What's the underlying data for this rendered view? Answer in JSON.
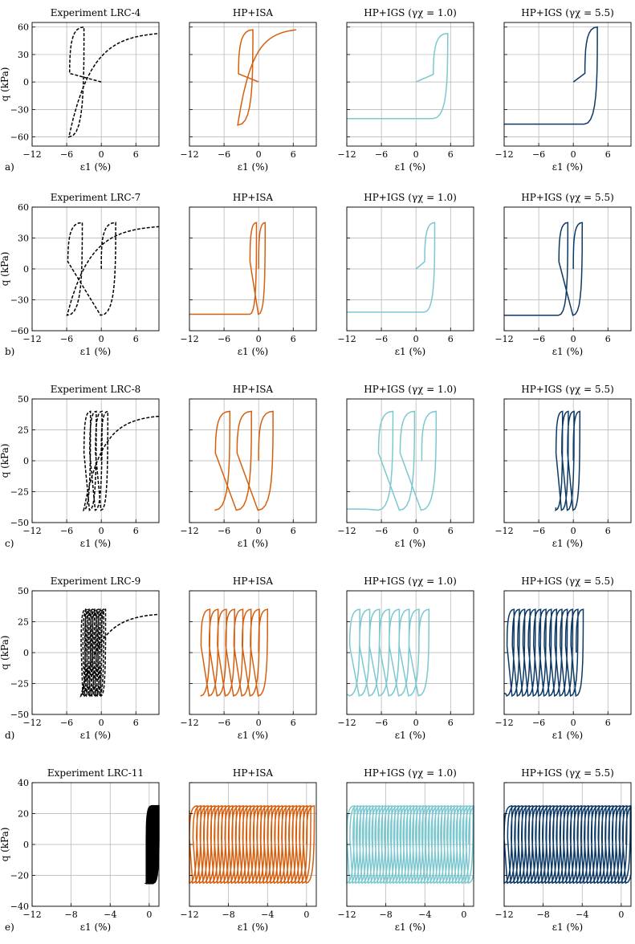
{
  "colors": {
    "experiment": "#000000",
    "hp_isa": "#d65f0e",
    "hp_igs_1": "#7cc8d0",
    "hp_igs_5": "#0c3966"
  },
  "chart_data": [
    {
      "row_label": "a)",
      "type": "line",
      "ylabel": "q (kPa)",
      "xlabel": "ε1 (%)",
      "xlim": [
        -12,
        10
      ],
      "ylim": [
        -70,
        65
      ],
      "xticks": [
        -12,
        -6,
        0,
        6
      ],
      "yticks": [
        -60,
        -30,
        0,
        30,
        60
      ],
      "panels": [
        {
          "title": "Experiment LRC-4",
          "series": "experiment",
          "q_amp": 60,
          "q_max": 60,
          "q_min": -60,
          "cycles": 1,
          "strain_start": 0,
          "strain_end": -5.5,
          "extra_cycles": [
            {
              "x_peak": 2,
              "x_trough": -5.3
            }
          ],
          "final_strain": 10,
          "final_q": 53
        },
        {
          "title": "HP+ISA",
          "series": "hp_isa",
          "q_max": 57,
          "q_min": -47,
          "cycles": 1,
          "strain_start": 0,
          "strain_end": -3.5,
          "final_strain": 6.5,
          "final_q": 57
        },
        {
          "title": "HP+IGS (γχ = 1.0)",
          "series": "hp_igs_1",
          "q_max": 53,
          "q_min": -40,
          "cycles": 1,
          "strain_start": 0,
          "strain_end": 3,
          "final_strain": -12,
          "final_q": -40
        },
        {
          "title": "HP+IGS (γχ = 5.5)",
          "series": "hp_igs_5",
          "q_max": 60,
          "q_min": -46,
          "cycles": 1,
          "strain_start": 0,
          "strain_end": 2,
          "final_strain": -12,
          "final_q": -46
        }
      ]
    },
    {
      "row_label": "b)",
      "type": "line",
      "ylabel": "q (kPa)",
      "xlabel": "ε1 (%)",
      "xlim": [
        -12,
        10
      ],
      "ylim": [
        -60,
        60
      ],
      "xticks": [
        -12,
        -6,
        0,
        6
      ],
      "yticks": [
        -60,
        -30,
        0,
        30,
        60
      ],
      "panels": [
        {
          "title": "Experiment LRC-7",
          "series": "experiment",
          "q_max": 45,
          "q_min": -45,
          "cycles": 2,
          "strain_start": 0,
          "strain_end": -5.8,
          "final_strain": 10,
          "final_q": 41
        },
        {
          "title": "HP+ISA",
          "series": "hp_isa",
          "q_max": 45,
          "q_min": -44,
          "cycles": 2,
          "strain_start": 0,
          "strain_end": -1.5,
          "final_strain": -12,
          "final_q": -44
        },
        {
          "title": "HP+IGS (γχ = 1.0)",
          "series": "hp_igs_1",
          "q_max": 45,
          "q_min": -42,
          "cycles": 1,
          "strain_start": 0,
          "strain_end": 1.5,
          "final_strain": -12,
          "final_q": -42
        },
        {
          "title": "HP+IGS (γχ = 5.5)",
          "series": "hp_igs_5",
          "q_max": 45,
          "q_min": -45,
          "cycles": 2,
          "strain_start": 0,
          "strain_end": -2.5,
          "final_strain": -12,
          "final_q": -45
        }
      ]
    },
    {
      "row_label": "c)",
      "type": "line",
      "ylabel": "q (kPa)",
      "xlabel": "ε1 (%)",
      "xlim": [
        -12,
        10
      ],
      "ylim": [
        -50,
        50
      ],
      "xticks": [
        -12,
        -6,
        0,
        6
      ],
      "yticks": [
        -50,
        -25,
        0,
        25,
        50
      ],
      "panels": [
        {
          "title": "Experiment LRC-8",
          "series": "experiment",
          "q_max": 40,
          "q_min": -40,
          "cycles": 4,
          "strain_start": 0,
          "strain_end": -3,
          "final_strain": 10,
          "final_q": 36
        },
        {
          "title": "HP+ISA",
          "series": "hp_isa",
          "q_max": 40,
          "q_min": -40,
          "cycles": 3,
          "strain_start": 0,
          "strain_end": -7.5,
          "final_strain": -7.5,
          "final_q": -40
        },
        {
          "title": "HP+IGS (γχ = 1.0)",
          "series": "hp_igs_1",
          "q_max": 40,
          "q_min": -40,
          "cycles": 3,
          "strain_start": 1,
          "strain_end": -6.5,
          "final_strain": -12,
          "final_q": -39
        },
        {
          "title": "HP+IGS (γχ = 5.5)",
          "series": "hp_igs_5",
          "q_max": 40,
          "q_min": -40,
          "cycles": 4,
          "strain_start": 0,
          "strain_end": -3,
          "final_strain": -3,
          "final_q": -38
        }
      ]
    },
    {
      "row_label": "d)",
      "type": "line",
      "ylabel": "q (kPa)",
      "xlabel": "ε1 (%)",
      "xlim": [
        -12,
        10
      ],
      "ylim": [
        -50,
        50
      ],
      "xticks": [
        -12,
        -6,
        0,
        6
      ],
      "yticks": [
        -50,
        -25,
        0,
        25,
        50
      ],
      "panels": [
        {
          "title": "Experiment LRC-9",
          "series": "experiment",
          "q_max": 35,
          "q_min": -35,
          "cycles": 12,
          "strain_start": 0,
          "strain_end": -3.5,
          "final_strain": 10,
          "final_q": 31
        },
        {
          "title": "HP+ISA",
          "series": "hp_isa",
          "q_max": 35,
          "q_min": -35,
          "cycles": 8,
          "strain_start": 0,
          "strain_end": -10,
          "final_strain": -10,
          "final_q": -35
        },
        {
          "title": "HP+IGS (γχ = 1.0)",
          "series": "hp_igs_1",
          "q_max": 35,
          "q_min": -35,
          "cycles": 8,
          "strain_start": 0.5,
          "strain_end": -11.5,
          "final_strain": -12,
          "final_q": -34
        },
        {
          "title": "HP+IGS (γχ = 5.5)",
          "series": "hp_igs_5",
          "q_max": 35,
          "q_min": -35,
          "cycles": 14,
          "strain_start": 0.5,
          "strain_end": -11.5,
          "final_strain": -12,
          "final_q": -33
        }
      ]
    },
    {
      "row_label": "e)",
      "type": "line",
      "ylabel": "q (kPa)",
      "xlabel": "ε1 (%)",
      "xlim": [
        -12,
        1
      ],
      "ylim": [
        -40,
        40
      ],
      "xticks": [
        -12,
        -8,
        -4,
        0
      ],
      "yticks": [
        -40,
        -20,
        0,
        20,
        40
      ],
      "panels": [
        {
          "title": "Experiment LRC-11",
          "series": "experiment",
          "q_max": 25,
          "q_min": -25,
          "cycles": 30,
          "strain_start": 0.5,
          "strain_end": -0.3,
          "final_strain": -0.3,
          "final_q": -25
        },
        {
          "title": "HP+ISA",
          "series": "hp_isa",
          "q_max": 25,
          "q_min": -25,
          "cycles": 34,
          "strain_start": 0,
          "strain_end": -12,
          "final_strain": -12,
          "final_q": 22
        },
        {
          "title": "HP+IGS (γχ = 1.0)",
          "series": "hp_igs_1",
          "q_max": 25,
          "q_min": -25,
          "cycles": 40,
          "strain_start": 0.5,
          "strain_end": -12,
          "final_strain": -12,
          "final_q": 20
        },
        {
          "title": "HP+IGS (γχ = 5.5)",
          "series": "hp_igs_5",
          "q_max": 25,
          "q_min": -25,
          "cycles": 36,
          "strain_start": 0.5,
          "strain_end": -12,
          "final_strain": -12,
          "final_q": 20
        }
      ]
    }
  ]
}
